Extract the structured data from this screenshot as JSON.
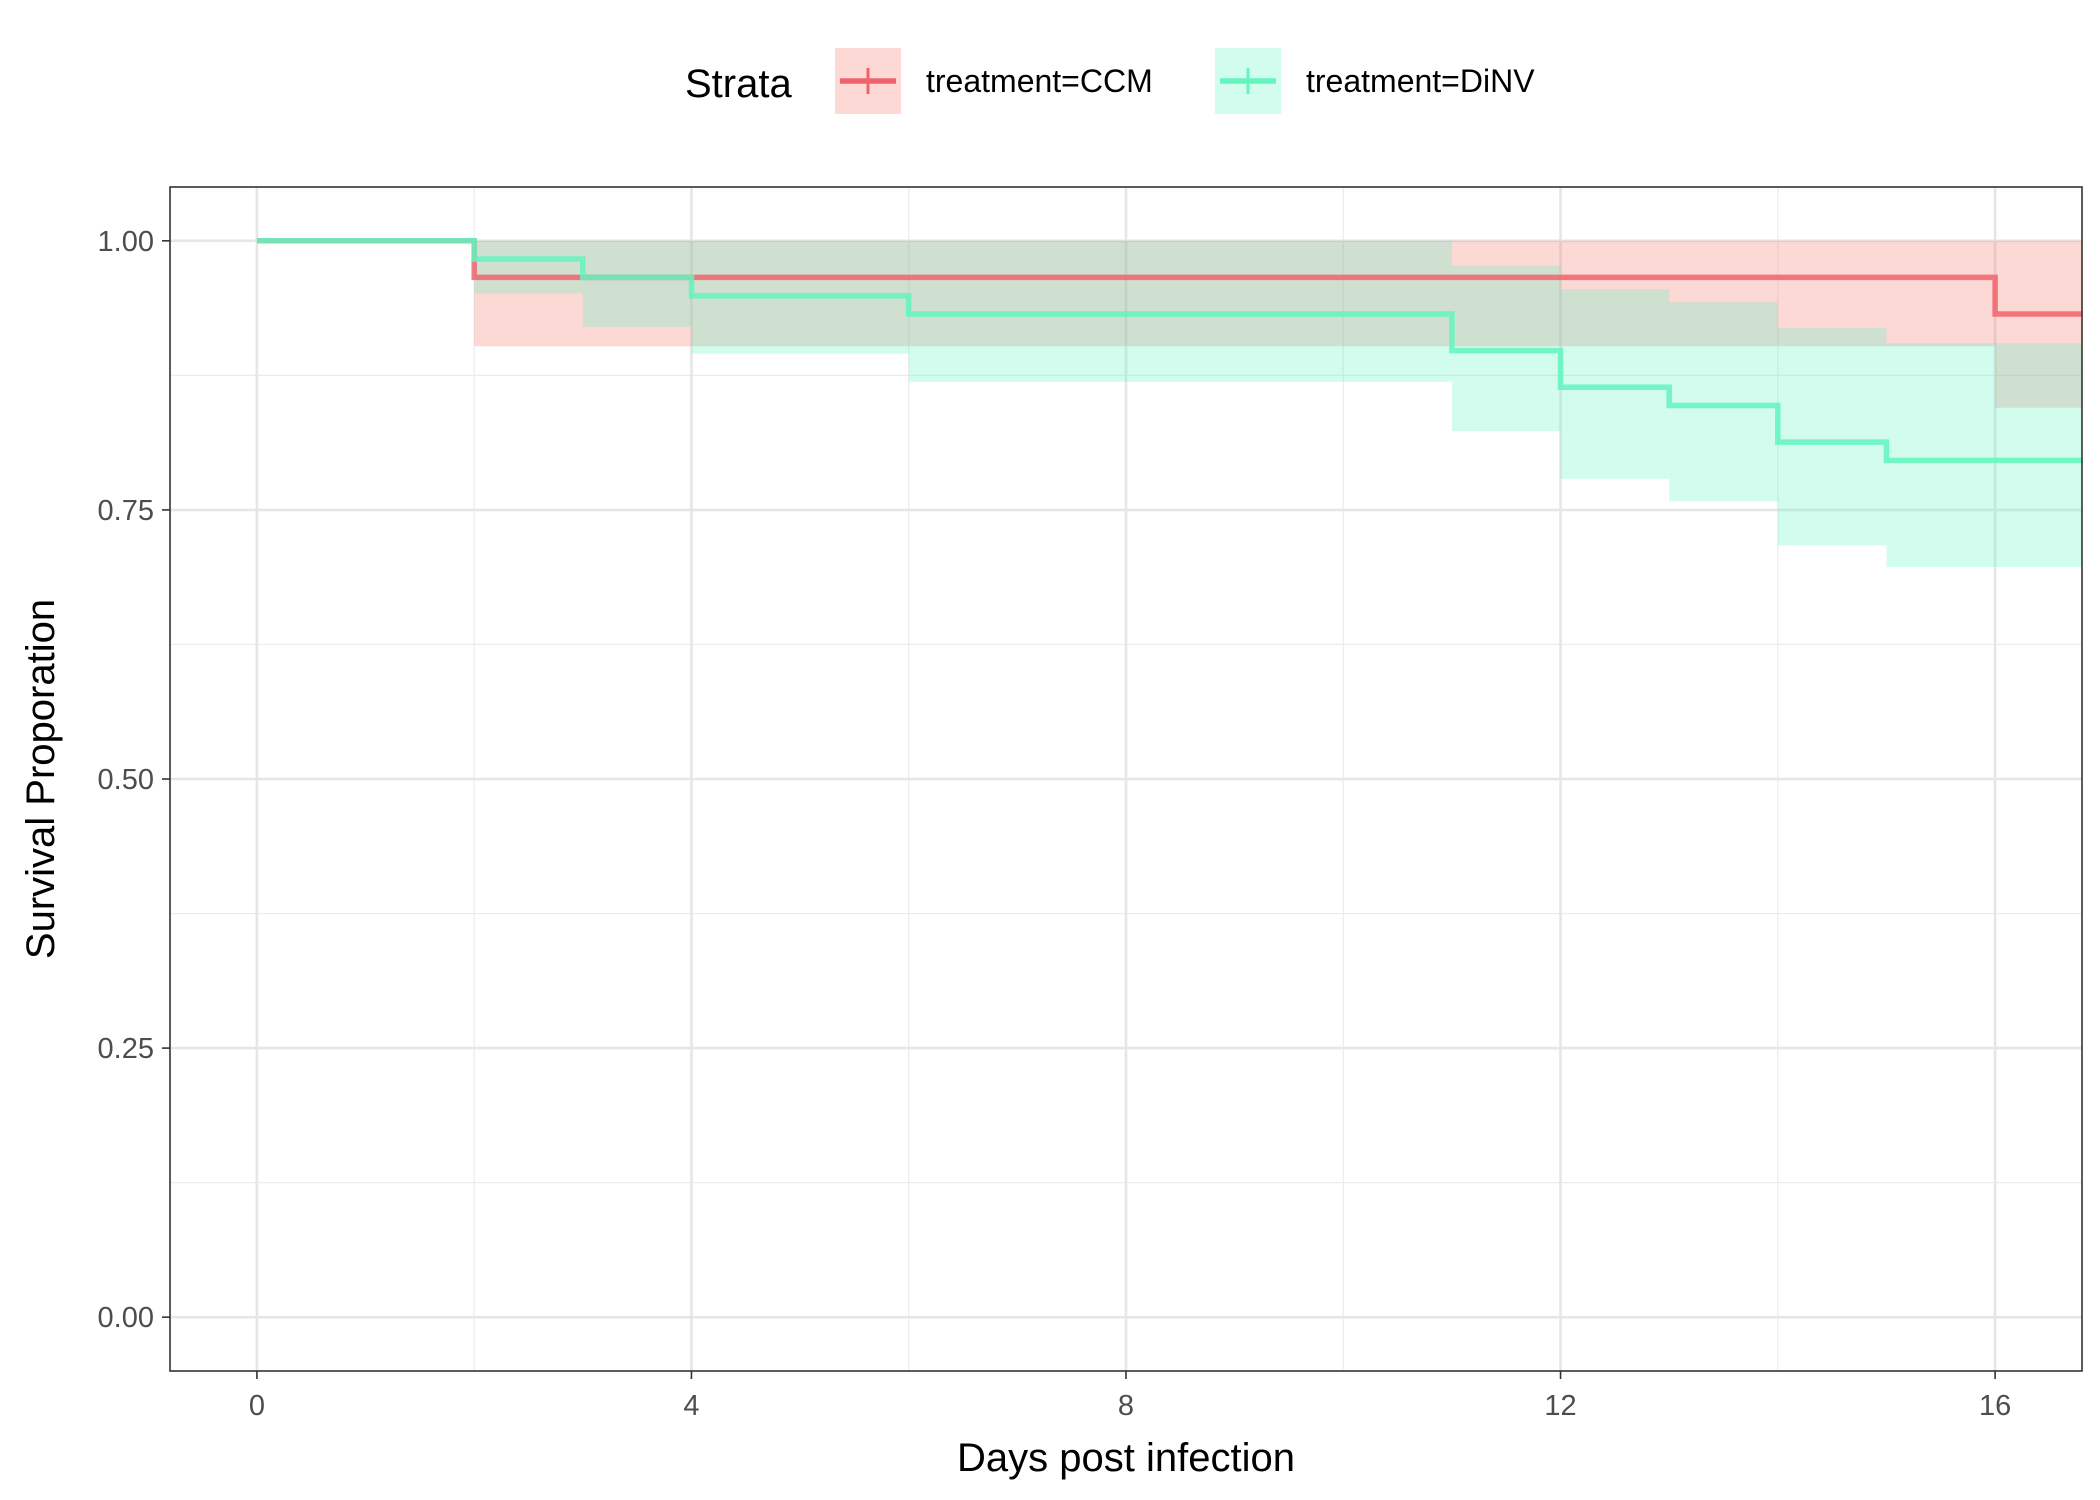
{
  "chart_data": {
    "type": "line",
    "subtype": "kaplan-meier-step",
    "legend": {
      "title": "Strata",
      "position": "top"
    },
    "xlabel": "Days post infection",
    "ylabel": "Survival Proporation",
    "xlim": [
      -0.8,
      16.8
    ],
    "ylim": [
      -0.05,
      1.05
    ],
    "x_ticks": [
      0,
      4,
      8,
      12,
      16
    ],
    "x_tick_labels": [
      "0",
      "4",
      "8",
      "12",
      "16"
    ],
    "y_ticks": [
      0,
      0.25,
      0.5,
      0.75,
      1.0
    ],
    "y_tick_labels": [
      "0.00",
      "0.25",
      "0.50",
      "0.75",
      "1.00"
    ],
    "grid": true,
    "series": [
      {
        "name": "treatment=CCM",
        "color": "#F0636C",
        "band_color": "#F8766D",
        "x": [
          0,
          2,
          16
        ],
        "y": [
          1.0,
          0.966,
          0.932
        ],
        "upper": [
          1.0,
          1.0,
          1.0
        ],
        "lower": [
          1.0,
          0.902,
          0.845
        ],
        "x_end": 16.8
      },
      {
        "name": "treatment=DiNV",
        "color": "#62F5BE",
        "band_color": "#5AF5C1",
        "x": [
          0,
          2,
          3,
          4,
          6,
          11,
          12,
          13,
          14,
          15
        ],
        "y": [
          1.0,
          0.983,
          0.966,
          0.949,
          0.932,
          0.898,
          0.864,
          0.847,
          0.813,
          0.796
        ],
        "upper": [
          1.0,
          1.0,
          1.0,
          1.0,
          1.0,
          0.977,
          0.955,
          0.943,
          0.919,
          0.905
        ],
        "lower": [
          1.0,
          0.951,
          0.92,
          0.895,
          0.869,
          0.823,
          0.779,
          0.758,
          0.717,
          0.697
        ],
        "x_end": 16.8
      }
    ]
  }
}
